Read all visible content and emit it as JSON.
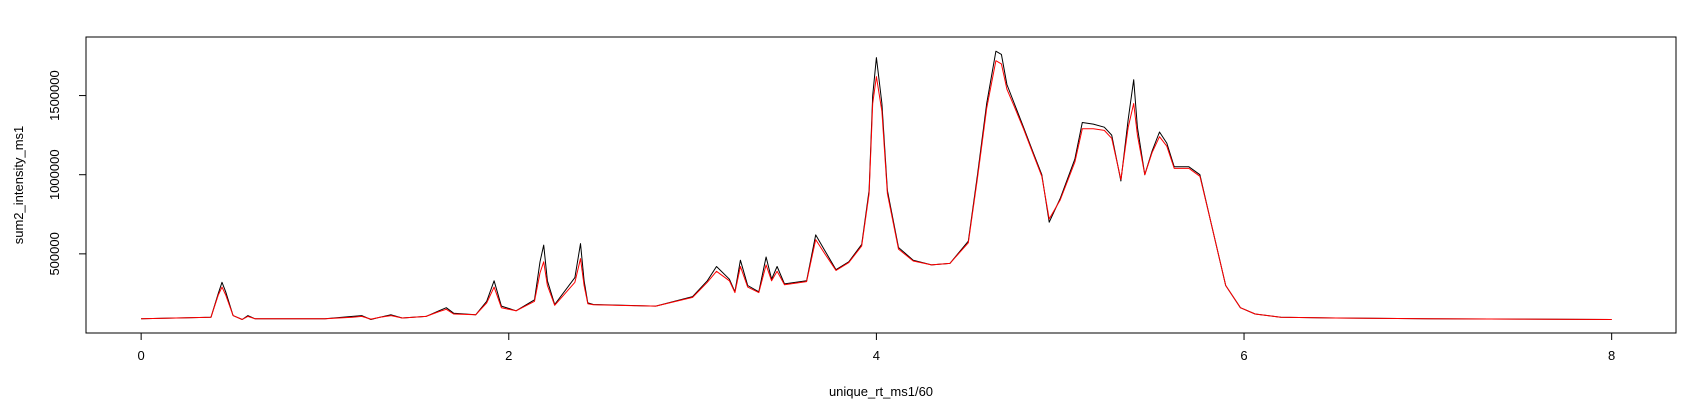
{
  "chart_data": {
    "type": "line",
    "title": "",
    "xlabel": "unique_rt_ms1/60",
    "ylabel": "sum2_intensity_ms1",
    "xlim": [
      -0.3,
      8.35
    ],
    "ylim": [
      0,
      1870000
    ],
    "xticks": [
      0,
      2,
      4,
      6,
      8
    ],
    "xtick_labels": [
      "0",
      "2",
      "4",
      "6",
      "8"
    ],
    "yticks": [
      500000,
      1000000,
      1500000
    ],
    "ytick_labels": [
      "500000",
      "1000000",
      "1500000"
    ],
    "grid": false,
    "legend": "none",
    "series": [
      {
        "color": "#000000",
        "x": [
          0.0,
          0.38,
          0.42,
          0.44,
          0.46,
          0.5,
          0.55,
          0.58,
          0.62,
          1.0,
          1.15,
          1.2,
          1.25,
          1.3,
          1.36,
          1.42,
          1.55,
          1.62,
          1.66,
          1.7,
          1.82,
          1.88,
          1.92,
          1.96,
          2.04,
          2.14,
          2.17,
          2.19,
          2.21,
          2.25,
          2.36,
          2.39,
          2.41,
          2.43,
          2.46,
          2.8,
          3.0,
          3.08,
          3.13,
          3.2,
          3.23,
          3.26,
          3.3,
          3.36,
          3.4,
          3.43,
          3.46,
          3.5,
          3.62,
          3.67,
          3.72,
          3.78,
          3.85,
          3.92,
          3.96,
          3.98,
          4.0,
          4.03,
          4.06,
          4.12,
          4.2,
          4.3,
          4.4,
          4.5,
          4.55,
          4.6,
          4.65,
          4.68,
          4.71,
          4.75,
          4.8,
          4.85,
          4.9,
          4.94,
          5.0,
          5.08,
          5.12,
          5.18,
          5.24,
          5.28,
          5.33,
          5.37,
          5.4,
          5.42,
          5.46,
          5.5,
          5.54,
          5.58,
          5.62,
          5.7,
          5.76,
          5.82,
          5.9,
          5.98,
          6.06,
          6.2,
          6.5,
          7.0,
          7.5,
          8.0
        ],
        "values": [
          90000,
          100000,
          250000,
          320000,
          260000,
          110000,
          85000,
          110000,
          90000,
          90000,
          105000,
          110000,
          85000,
          100000,
          115000,
          95000,
          105000,
          140000,
          160000,
          125000,
          115000,
          200000,
          330000,
          170000,
          140000,
          210000,
          450000,
          555000,
          330000,
          180000,
          350000,
          565000,
          330000,
          190000,
          180000,
          170000,
          230000,
          330000,
          420000,
          340000,
          260000,
          460000,
          300000,
          260000,
          480000,
          340000,
          420000,
          310000,
          330000,
          620000,
          520000,
          400000,
          450000,
          560000,
          900000,
          1500000,
          1740000,
          1450000,
          900000,
          540000,
          460000,
          430000,
          440000,
          580000,
          1000000,
          1450000,
          1780000,
          1760000,
          1570000,
          1450000,
          1300000,
          1150000,
          1000000,
          700000,
          850000,
          1100000,
          1330000,
          1320000,
          1300000,
          1250000,
          960000,
          1350000,
          1600000,
          1300000,
          1000000,
          1150000,
          1270000,
          1200000,
          1050000,
          1050000,
          1000000,
          700000,
          300000,
          160000,
          120000,
          100000,
          95000,
          90000,
          88000,
          85000
        ]
      },
      {
        "color": "#ff0000",
        "x": [
          0.0,
          0.38,
          0.42,
          0.44,
          0.46,
          0.5,
          0.55,
          0.58,
          0.62,
          1.0,
          1.15,
          1.2,
          1.25,
          1.3,
          1.36,
          1.42,
          1.55,
          1.62,
          1.66,
          1.7,
          1.82,
          1.88,
          1.92,
          1.96,
          2.04,
          2.14,
          2.17,
          2.19,
          2.21,
          2.25,
          2.36,
          2.39,
          2.41,
          2.43,
          2.46,
          2.8,
          3.0,
          3.08,
          3.13,
          3.2,
          3.23,
          3.26,
          3.3,
          3.36,
          3.4,
          3.43,
          3.46,
          3.5,
          3.62,
          3.67,
          3.72,
          3.78,
          3.85,
          3.92,
          3.96,
          3.98,
          4.0,
          4.03,
          4.06,
          4.12,
          4.2,
          4.3,
          4.4,
          4.5,
          4.55,
          4.6,
          4.65,
          4.68,
          4.71,
          4.75,
          4.8,
          4.85,
          4.9,
          4.94,
          5.0,
          5.08,
          5.12,
          5.18,
          5.24,
          5.28,
          5.33,
          5.37,
          5.4,
          5.42,
          5.46,
          5.5,
          5.54,
          5.58,
          5.62,
          5.7,
          5.76,
          5.82,
          5.9,
          5.98,
          6.06,
          6.2,
          6.5,
          7.0,
          7.5,
          8.0
        ],
        "values": [
          90000,
          100000,
          240000,
          290000,
          240000,
          110000,
          85000,
          105000,
          90000,
          90000,
          100000,
          105000,
          88000,
          100000,
          110000,
          95000,
          105000,
          135000,
          150000,
          120000,
          115000,
          190000,
          290000,
          160000,
          140000,
          200000,
          380000,
          450000,
          300000,
          175000,
          320000,
          470000,
          300000,
          185000,
          178000,
          170000,
          225000,
          320000,
          390000,
          330000,
          255000,
          420000,
          290000,
          255000,
          430000,
          330000,
          390000,
          305000,
          325000,
          590000,
          500000,
          395000,
          445000,
          550000,
          880000,
          1450000,
          1620000,
          1400000,
          880000,
          530000,
          455000,
          430000,
          440000,
          570000,
          980000,
          1420000,
          1720000,
          1700000,
          1540000,
          1430000,
          1290000,
          1140000,
          990000,
          720000,
          840000,
          1080000,
          1290000,
          1290000,
          1280000,
          1230000,
          970000,
          1300000,
          1450000,
          1250000,
          1000000,
          1140000,
          1240000,
          1180000,
          1040000,
          1040000,
          990000,
          700000,
          300000,
          160000,
          120000,
          100000,
          95000,
          90000,
          88000,
          85000
        ]
      }
    ]
  }
}
